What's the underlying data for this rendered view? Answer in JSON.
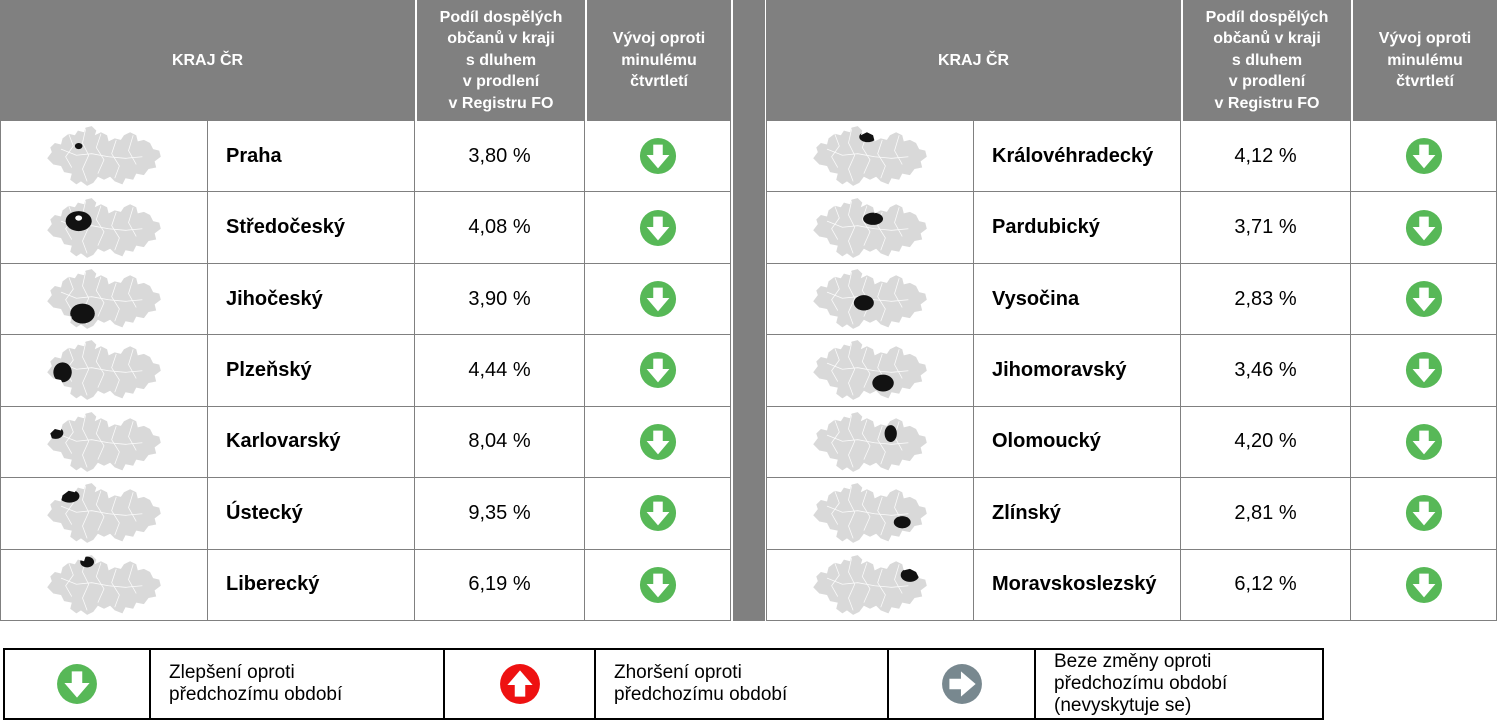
{
  "column_headers": {
    "region": "KRAJ ČR",
    "share": "Podíl dospělých\nobčanů v kraji\ns dluhem\nv prodlení\nv Registru FO",
    "trend": "Vývoj oproti\nminulému\nčtvrtletí"
  },
  "tables": [
    {
      "rows": [
        {
          "region": "Praha",
          "value": "3,80 %",
          "trend": "down",
          "map_key": "praha"
        },
        {
          "region": "Středočeský",
          "value": "4,08 %",
          "trend": "down",
          "map_key": "stredocesky"
        },
        {
          "region": "Jihočeský",
          "value": "3,90 %",
          "trend": "down",
          "map_key": "jihocesky"
        },
        {
          "region": "Plzeňský",
          "value": "4,44 %",
          "trend": "down",
          "map_key": "plzensky"
        },
        {
          "region": "Karlovarský",
          "value": "8,04 %",
          "trend": "down",
          "map_key": "karlovarsky"
        },
        {
          "region": "Ústecký",
          "value": "9,35 %",
          "trend": "down",
          "map_key": "ustecky"
        },
        {
          "region": "Liberecký",
          "value": "6,19 %",
          "trend": "down",
          "map_key": "liberecky"
        }
      ]
    },
    {
      "rows": [
        {
          "region": "Královéhradecký",
          "value": "4,12 %",
          "trend": "down",
          "map_key": "kralovehradecky"
        },
        {
          "region": "Pardubický",
          "value": "3,71 %",
          "trend": "down",
          "map_key": "pardubicky"
        },
        {
          "region": "Vysočina",
          "value": "2,83 %",
          "trend": "down",
          "map_key": "vysocina"
        },
        {
          "region": "Jihomoravský",
          "value": "3,46 %",
          "trend": "down",
          "map_key": "jihomoravsky"
        },
        {
          "region": "Olomoucký",
          "value": "4,20 %",
          "trend": "down",
          "map_key": "olomoucky"
        },
        {
          "region": "Zlínský",
          "value": "2,81 %",
          "trend": "down",
          "map_key": "zlinsky"
        },
        {
          "region": "Moravskoslezský",
          "value": "6,12 %",
          "trend": "down",
          "map_key": "moravskoslezsky"
        }
      ]
    }
  ],
  "legend": {
    "items": [
      {
        "icon": "arrow-down-circle-icon",
        "direction": "down",
        "color": "#57B857",
        "text": "Zlepšení oproti\npředchozímu období"
      },
      {
        "icon": "arrow-up-circle-icon",
        "direction": "up",
        "color": "#EE1111",
        "text": "Zhoršení oproti\npředchozímu období"
      },
      {
        "icon": "arrow-right-circle-icon",
        "direction": "right",
        "color": "#78888F",
        "text": "Beze změny oproti\npředchozímu období\n(nevyskytuje se)"
      }
    ]
  },
  "colors": {
    "header_bg": "#808080",
    "grid": "#808080",
    "map_base": "#D9D9D9",
    "map_highlight": "#121212",
    "improve": "#57B857",
    "worsen": "#EE1111",
    "no_change": "#78888F"
  }
}
